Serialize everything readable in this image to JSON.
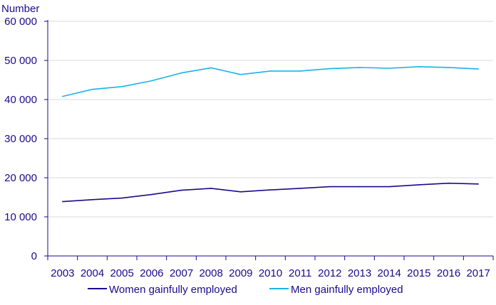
{
  "chart_data": {
    "type": "line",
    "ylabel": "Number",
    "categories": [
      "2003",
      "2004",
      "2005",
      "2006",
      "2007",
      "2008",
      "2009",
      "2010",
      "2011",
      "2012",
      "2013",
      "2014",
      "2015",
      "2016",
      "2017"
    ],
    "yticks": [
      "0",
      "10 000",
      "20 000",
      "30 000",
      "40 000",
      "50 000",
      "60 000"
    ],
    "ylim": [
      0,
      60000
    ],
    "grid": true,
    "legend_position": "bottom",
    "series": [
      {
        "name": "Women gainfully employed",
        "color": "#1a0a8c",
        "values": [
          13900,
          14400,
          14800,
          15700,
          16800,
          17300,
          16400,
          16900,
          17300,
          17700,
          17700,
          17700,
          18200,
          18600,
          18400
        ]
      },
      {
        "name": "Men gainfully employed",
        "color": "#1ab2e8",
        "values": [
          40800,
          42600,
          43300,
          44800,
          46800,
          48100,
          46400,
          47300,
          47300,
          47900,
          48200,
          48000,
          48400,
          48200,
          47800
        ]
      }
    ]
  }
}
